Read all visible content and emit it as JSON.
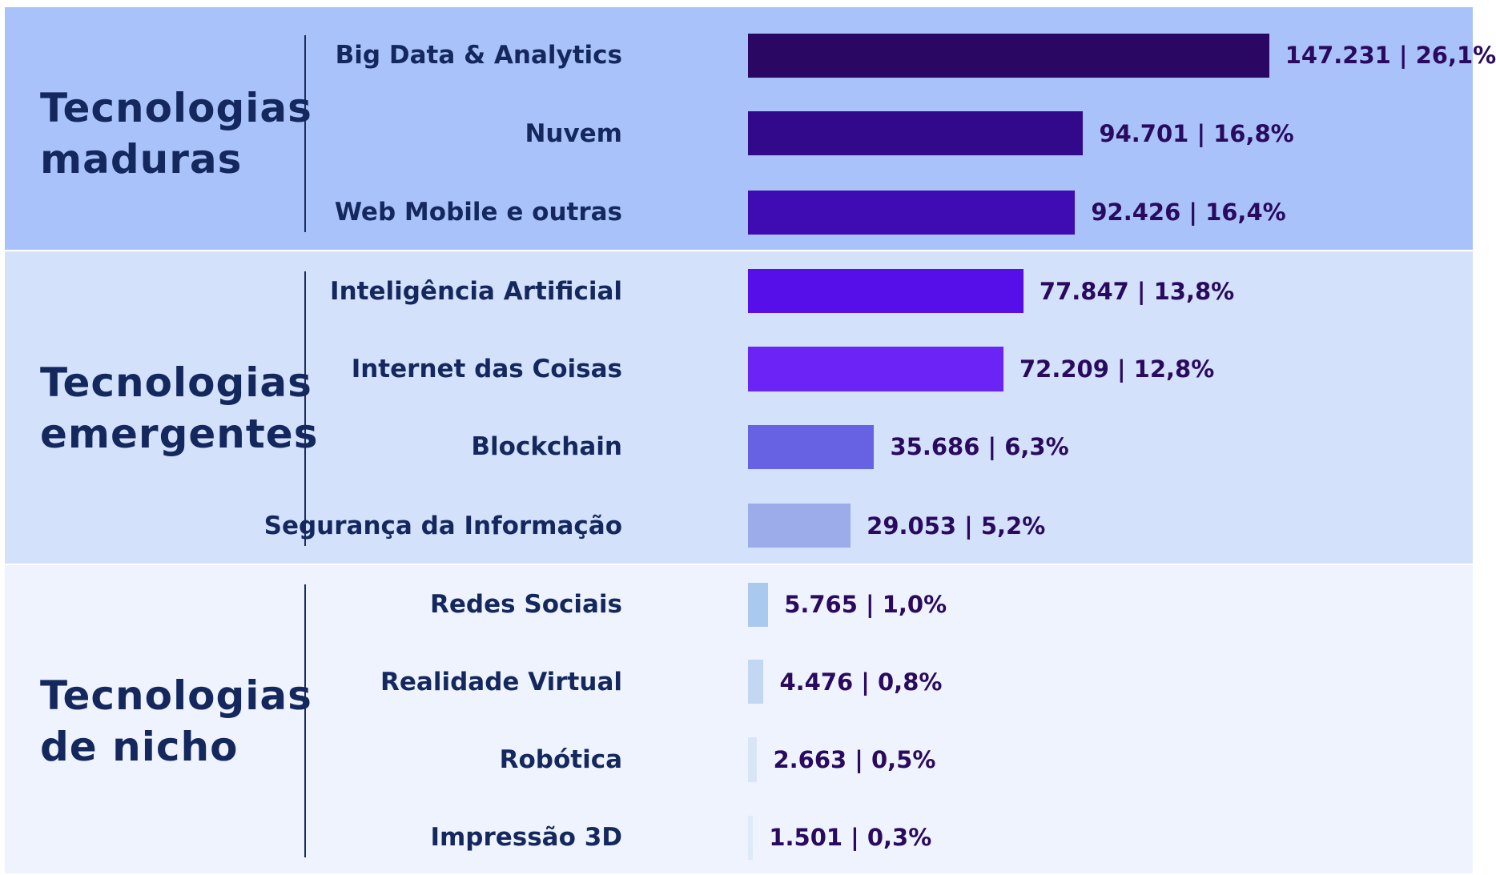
{
  "chart_data": {
    "type": "bar",
    "groups": [
      {
        "name": "Tecnologias maduras",
        "background": "#a9c3fa",
        "categories": [
          "Big Data & Analytics",
          "Nuvem",
          "Web Mobile e outras"
        ],
        "values": [
          147231,
          94701,
          92426
        ],
        "value_labels": [
          "147.231 | 26,1%",
          "94.701 | 16,8%",
          "92.426 | 16,4%"
        ],
        "colors": [
          "#2a0762",
          "#32098a",
          "#3e0cb2"
        ]
      },
      {
        "name": "Tecnologias emergentes",
        "background": "#d4e1fb",
        "categories": [
          "Inteligência Artificial",
          "Internet das Coisas",
          "Blockchain",
          "Segurança da Informação"
        ],
        "values": [
          77847,
          72209,
          35686,
          29053
        ],
        "value_labels": [
          "77.847 | 13,8%",
          "72.209 | 12,8%",
          "35.686 | 6,3%",
          "29.053 | 5,2%"
        ],
        "colors": [
          "#570fe9",
          "#6b23f6",
          "#6761e4",
          "#9cabea"
        ]
      },
      {
        "name": "Tecnologias de nicho",
        "background": "#eef3fd",
        "categories": [
          "Redes Sociais",
          "Realidade Virtual",
          "Robótica",
          "Impressão 3D"
        ],
        "values": [
          5765,
          4476,
          2663,
          1501
        ],
        "value_labels": [
          "5.765 | 1,0%",
          "4.476 | 0,8%",
          "2.663 | 0,5%",
          "1.501 | 0,3%"
        ],
        "colors": [
          "#a9c9ef",
          "#c2d8f2",
          "#d7e6f6",
          "#deeaf7"
        ]
      }
    ]
  }
}
